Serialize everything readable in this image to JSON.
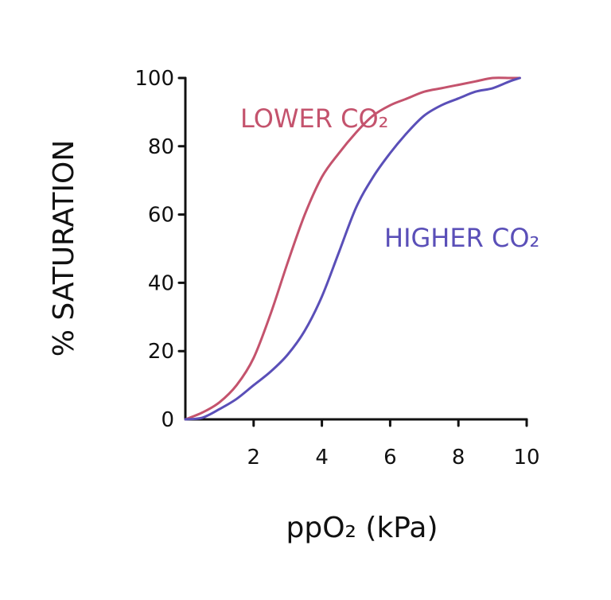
{
  "chart_data": {
    "type": "line",
    "xlabel": "ppO₂ (kPa)",
    "ylabel": "% SATURATION",
    "xlim": [
      0,
      10
    ],
    "ylim": [
      0,
      100
    ],
    "xticks": [
      "2",
      "4",
      "6",
      "8",
      "10"
    ],
    "yticks": [
      "0",
      "20",
      "40",
      "60",
      "80",
      "100"
    ],
    "grid": false,
    "series": [
      {
        "name": "LOWER CO₂",
        "color": "#c4536d",
        "x": [
          0,
          0.5,
          1,
          1.5,
          2,
          2.5,
          3,
          3.5,
          4,
          4.5,
          5,
          5.5,
          6,
          6.5,
          7,
          7.5,
          8,
          8.5,
          9,
          9.5,
          9.8
        ],
        "y": [
          0,
          2,
          5,
          10,
          18,
          31,
          46,
          60,
          71,
          78,
          84,
          89,
          92,
          94,
          96,
          97,
          98,
          99,
          100,
          100,
          100
        ]
      },
      {
        "name": "HIGHER CO₂",
        "color": "#5a4fb8",
        "x": [
          0,
          0.5,
          1,
          1.5,
          2,
          2.5,
          3,
          3.5,
          4,
          4.5,
          5,
          5.5,
          6,
          6.5,
          7,
          7.5,
          8,
          8.5,
          9,
          9.5,
          9.8
        ],
        "y": [
          0,
          0.5,
          3,
          6,
          10,
          14,
          19,
          26,
          36,
          49,
          62,
          71,
          78,
          84,
          89,
          92,
          94,
          96,
          97,
          99,
          100
        ]
      }
    ]
  }
}
